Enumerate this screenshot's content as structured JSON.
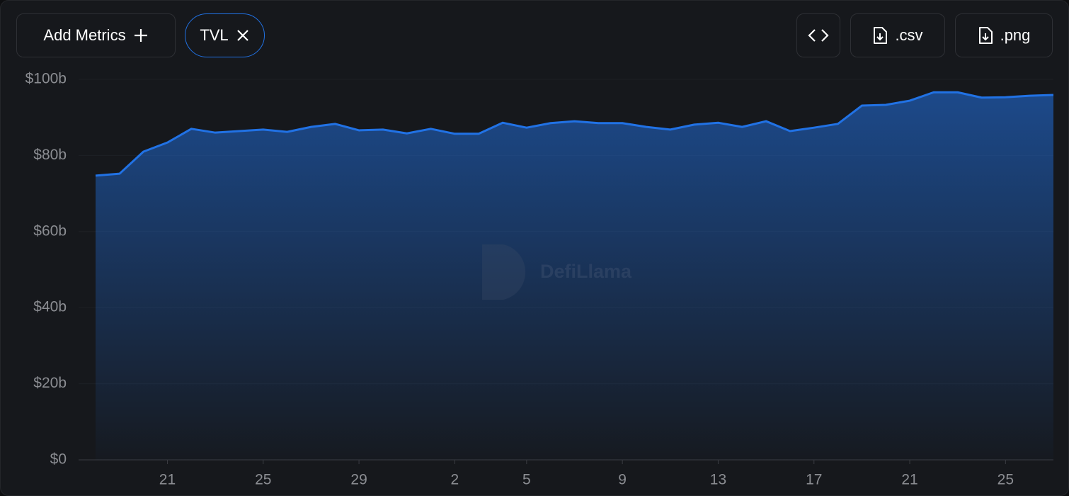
{
  "toolbar": {
    "add_metrics": "Add Metrics",
    "metric_chip": "TVL",
    "csv": ".csv",
    "png": ".png"
  },
  "watermark": "DefiLlama",
  "chart_data": {
    "type": "area",
    "categories": [
      null,
      null,
      null,
      "21",
      null,
      null,
      null,
      "25",
      null,
      null,
      null,
      "29",
      null,
      null,
      null,
      "2",
      null,
      null,
      "5",
      null,
      null,
      null,
      "9",
      null,
      null,
      null,
      "13",
      null,
      null,
      null,
      "17",
      null,
      null,
      null,
      "21",
      null,
      null,
      null,
      "25",
      null,
      null
    ],
    "series": [
      {
        "color": "#2172e5",
        "values": [
          74.7,
          75.2,
          81.0,
          83.4,
          87.0,
          86.0,
          86.4,
          86.8,
          86.2,
          87.5,
          88.3,
          86.6,
          86.8,
          85.8,
          87.0,
          85.7,
          85.7,
          88.6,
          87.3,
          88.5,
          89.0,
          88.5,
          88.5,
          87.5,
          86.8,
          88.1,
          88.6,
          87.5,
          89.0,
          86.4,
          87.3,
          88.3,
          93.1,
          93.3,
          94.4,
          96.6,
          96.6,
          95.2,
          95.3,
          95.7,
          95.9
        ]
      }
    ],
    "ylim": [
      0,
      100
    ],
    "yticks": [
      {
        "value": 0,
        "label": "$0"
      },
      {
        "value": 20,
        "label": "$20b"
      },
      {
        "value": 40,
        "label": "$40b"
      },
      {
        "value": 60,
        "label": "$60b"
      },
      {
        "value": 80,
        "label": "$80b"
      },
      {
        "value": 100,
        "label": "$100b"
      }
    ],
    "grid": true
  }
}
